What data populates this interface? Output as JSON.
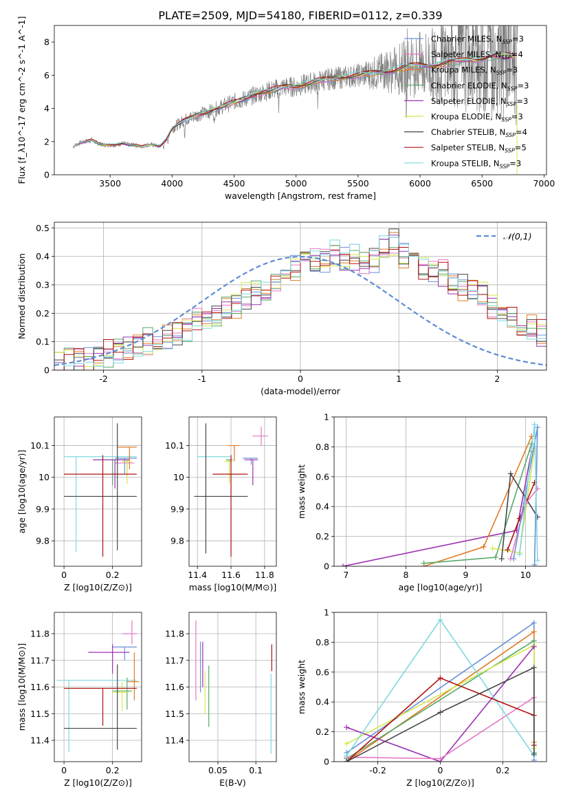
{
  "figure_title": "PLATE=2509, MJD=54180, FIBERID=0112, z=0.339",
  "colors": {
    "Chabrier MILES": "#6b8fd6",
    "Salpeter MILES": "#e377c2",
    "Kroupa MILES": "#e07b22",
    "Chabrier ELODIE": "#55a868",
    "Salpeter ELODIE": "#9b30b0",
    "Kroupa ELODIE": "#d4e84a",
    "Chabrier STELIB": "#444444",
    "Salpeter STELIB": "#b01010",
    "Kroupa STELIB": "#7ed8de",
    "spectrum": "#808080",
    "normal_curve": "#5b8bd6"
  },
  "chart_data": [
    {
      "id": "spectrum",
      "type": "line",
      "xlabel": "wavelength [Angstrom, rest frame]",
      "ylabel": "Flux [f_λ10^-17 erg cm^-2 s^-1 A^-1]",
      "xlim": [
        3050,
        7020
      ],
      "ylim": [
        0,
        9
      ],
      "xticks": [
        3500,
        4000,
        4500,
        5000,
        5500,
        6000,
        6500,
        7000
      ],
      "yticks": [
        0,
        2,
        4,
        6,
        8
      ],
      "grid": false,
      "legend_position": "top-right",
      "legend": [
        {
          "name": "Chabrier MILES",
          "nssp": 3
        },
        {
          "name": "Salpeter MILES",
          "nssp": 4
        },
        {
          "name": "Kroupa MILES",
          "nssp": 3
        },
        {
          "name": "Chabrier ELODIE",
          "nssp": 3
        },
        {
          "name": "Salpeter ELODIE",
          "nssp": 3
        },
        {
          "name": "Kroupa ELODIE",
          "nssp": 3
        },
        {
          "name": "Chabrier STELIB",
          "nssp": 4
        },
        {
          "name": "Salpeter STELIB",
          "nssp": 5
        },
        {
          "name": "Kroupa STELIB",
          "nssp": 3
        }
      ],
      "continuum": {
        "x": [
          3200,
          3250,
          3300,
          3350,
          3400,
          3450,
          3500,
          3550,
          3600,
          3650,
          3700,
          3750,
          3800,
          3850,
          3900,
          3950,
          4000,
          4100,
          4200,
          4300,
          4400,
          4500,
          4600,
          4700,
          4800,
          4900,
          5000,
          5100,
          5200,
          5300,
          5400,
          5500,
          5600,
          5700,
          5800,
          5900,
          6000,
          6100,
          6200,
          6300,
          6400,
          6500,
          6600,
          6700,
          6800
        ],
        "y": [
          1.7,
          1.9,
          2.0,
          2.1,
          1.9,
          1.8,
          1.8,
          1.8,
          1.9,
          1.8,
          1.8,
          1.7,
          1.8,
          1.8,
          1.7,
          2.1,
          2.8,
          3.3,
          3.6,
          3.8,
          4.1,
          4.4,
          4.6,
          4.9,
          5.1,
          5.3,
          5.3,
          5.5,
          5.7,
          5.8,
          5.9,
          6.0,
          6.1,
          6.2,
          6.3,
          6.5,
          6.6,
          6.6,
          6.7,
          6.8,
          7.0,
          7.0,
          7.1,
          7.2,
          7.2
        ]
      },
      "wavelength_range": [
        3200,
        6790
      ]
    },
    {
      "id": "residuals",
      "type": "bar",
      "xlabel": "(data-model)/error",
      "ylabel": "Normed distribution",
      "xlim": [
        -2.5,
        2.5
      ],
      "ylim": [
        0,
        0.52
      ],
      "xticks": [
        -2,
        -1,
        0,
        1,
        2
      ],
      "yticks": [
        0.0,
        0.1,
        0.2,
        0.3,
        0.4,
        0.5
      ],
      "grid": true,
      "legend": [
        {
          "name": "𝒩(0,1)"
        }
      ],
      "legend_position": "top-right",
      "bin_width": 0.1,
      "x_start": -2.5,
      "bins_reference": [
        0.02,
        0.03,
        0.04,
        0.04,
        0.05,
        0.06,
        0.07,
        0.08,
        0.09,
        0.1,
        0.12,
        0.12,
        0.13,
        0.15,
        0.17,
        0.18,
        0.19,
        0.21,
        0.23,
        0.26,
        0.28,
        0.29,
        0.31,
        0.33,
        0.36,
        0.37,
        0.38,
        0.39,
        0.41,
        0.39,
        0.4,
        0.38,
        0.39,
        0.43,
        0.45,
        0.4,
        0.39,
        0.36,
        0.35,
        0.34,
        0.31,
        0.29,
        0.27,
        0.26,
        0.23,
        0.2,
        0.18,
        0.16,
        0.15,
        0.13
      ]
    },
    {
      "id": "age_vs_Z",
      "type": "scatter",
      "xlabel": "Z [log10(Z/Z⊙)]",
      "ylabel": "age [log10(age/yr)]",
      "xlim": [
        -0.04,
        0.32
      ],
      "ylim": [
        9.72,
        10.19
      ],
      "xticks": [
        0.0,
        0.2
      ],
      "yticks": [
        9.8,
        9.9,
        10.0,
        10.1
      ],
      "grid": true,
      "points": [
        {
          "model": "Kroupa STELIB",
          "x": 0.05,
          "xerr": [
            0.05,
            0.25
          ],
          "y": 10.065,
          "yerr": [
            0.3,
            0.0
          ]
        },
        {
          "model": "Chabrier MILES",
          "x": 0.25,
          "xerr": [
            0.04,
            0.05
          ],
          "y": 10.06,
          "yerr": [
            0.05,
            0.0
          ]
        },
        {
          "model": "Salpeter MILES",
          "x": 0.26,
          "xerr": [
            0.05,
            0.03
          ],
          "y": 10.045,
          "yerr": [
            0.04,
            0.01
          ]
        },
        {
          "model": "Kroupa MILES",
          "x": 0.27,
          "xerr": [
            0.05,
            0.03
          ],
          "y": 10.095,
          "yerr": [
            0.07,
            0.0
          ]
        },
        {
          "model": "Chabrier ELODIE",
          "x": 0.2,
          "xerr": [
            0.08,
            0.07
          ],
          "y": 10.055,
          "yerr": [
            0.08,
            0.0
          ]
        },
        {
          "model": "Salpeter ELODIE",
          "x": 0.21,
          "xerr": [
            0.09,
            0.06
          ],
          "y": 10.055,
          "yerr": [
            0.09,
            0.0
          ]
        },
        {
          "model": "Kroupa ELODIE",
          "x": 0.26,
          "xerr": [
            0.02,
            0.02
          ],
          "y": 10.05,
          "yerr": [
            0.07,
            0.0
          ]
        },
        {
          "model": "Salpeter STELIB",
          "x": 0.16,
          "xerr": [
            0.16,
            0.14
          ],
          "y": 10.01,
          "yerr": [
            0.26,
            0.06
          ]
        },
        {
          "model": "Chabrier STELIB",
          "x": 0.22,
          "xerr": [
            0.22,
            0.08
          ],
          "y": 9.94,
          "yerr": [
            0.17,
            0.23
          ]
        }
      ]
    },
    {
      "id": "age_vs_mass",
      "type": "scatter",
      "xlabel": "mass [log10(M/M⊙)]",
      "ylabel": "",
      "xlim": [
        11.35,
        11.87
      ],
      "ylim": [
        9.72,
        10.19
      ],
      "xticks": [
        11.4,
        11.6,
        11.8
      ],
      "yticks": [
        9.8,
        9.9,
        10.0,
        10.1
      ],
      "grid": true,
      "points": [
        {
          "model": "Kroupa STELIB",
          "x": 11.6,
          "xerr": [
            0.2,
            0.0
          ],
          "y": 10.065,
          "yerr": [
            0.3,
            0.0
          ]
        },
        {
          "model": "Chabrier MILES",
          "x": 11.72,
          "xerr": [
            0.05,
            0.04
          ],
          "y": 10.06,
          "yerr": [
            0.02,
            0.0
          ]
        },
        {
          "model": "Salpeter MILES",
          "x": 11.78,
          "xerr": [
            0.05,
            0.04
          ],
          "y": 10.13,
          "yerr": [
            0.03,
            0.03
          ]
        },
        {
          "model": "Kroupa MILES",
          "x": 11.62,
          "xerr": [
            0.04,
            0.03
          ],
          "y": 10.1,
          "yerr": [
            0.05,
            0.0
          ]
        },
        {
          "model": "Chabrier ELODIE",
          "x": 11.59,
          "xerr": [
            0.02,
            0.02
          ],
          "y": 10.055,
          "yerr": [
            0.07,
            0.0
          ]
        },
        {
          "model": "Salpeter ELODIE",
          "x": 11.73,
          "xerr": [
            0.05,
            0.03
          ],
          "y": 10.055,
          "yerr": [
            0.08,
            0.0
          ]
        },
        {
          "model": "Kroupa ELODIE",
          "x": 11.59,
          "xerr": [
            0.03,
            0.02
          ],
          "y": 10.05,
          "yerr": [
            0.07,
            0.0
          ]
        },
        {
          "model": "Salpeter STELIB",
          "x": 11.6,
          "xerr": [
            0.11,
            0.1
          ],
          "y": 10.01,
          "yerr": [
            0.26,
            0.06
          ]
        },
        {
          "model": "Chabrier STELIB",
          "x": 11.45,
          "xerr": [
            0.07,
            0.25
          ],
          "y": 9.94,
          "yerr": [
            0.18,
            0.23
          ]
        }
      ]
    },
    {
      "id": "massweight_vs_age",
      "type": "line",
      "xlabel": "age [log10(age/yr)]",
      "ylabel": "mass weight",
      "xlim": [
        6.8,
        10.35
      ],
      "ylim": [
        0,
        1.0
      ],
      "xticks": [
        7,
        8,
        9,
        10
      ],
      "yticks": [
        0.0,
        0.2,
        0.4,
        0.6,
        0.8,
        1.0
      ],
      "grid": true,
      "series": [
        {
          "model": "Salpeter ELODIE",
          "x": [
            6.95,
            9.85,
            10.1
          ],
          "y": [
            0.0,
            0.24,
            0.77
          ]
        },
        {
          "model": "Kroupa MILES",
          "x": [
            8.3,
            9.3,
            10.1
          ],
          "y": [
            0.0,
            0.13,
            0.87
          ]
        },
        {
          "model": "Chabrier ELODIE",
          "x": [
            8.3,
            9.5,
            10.1
          ],
          "y": [
            0.02,
            0.06,
            0.82
          ]
        },
        {
          "model": "Kroupa ELODIE",
          "x": [
            9.45,
            9.9,
            10.15
          ],
          "y": [
            0.12,
            0.09,
            0.79
          ]
        },
        {
          "model": "Chabrier STELIB",
          "x": [
            9.6,
            9.75,
            10.2
          ],
          "y": [
            0.05,
            0.62,
            0.33
          ]
        },
        {
          "model": "Salpeter STELIB",
          "x": [
            9.7,
            9.9,
            10.15
          ],
          "y": [
            0.11,
            0.32,
            0.56
          ]
        },
        {
          "model": "Salpeter MILES",
          "x": [
            9.75,
            10.0,
            10.2
          ],
          "y": [
            0.05,
            0.42,
            0.52
          ]
        },
        {
          "model": "Chabrier MILES",
          "x": [
            9.8,
            10.2,
            10.15
          ],
          "y": [
            0.05,
            0.93,
            0.01
          ]
        },
        {
          "model": "Kroupa STELIB",
          "x": [
            9.9,
            10.15,
            10.2
          ],
          "y": [
            0.08,
            0.95,
            0.04
          ]
        }
      ]
    },
    {
      "id": "mass_vs_Z",
      "type": "scatter",
      "xlabel": "Z [log10(Z/Z⊙)]",
      "ylabel": "mass [log10(M/M⊙)]",
      "xlim": [
        -0.04,
        0.32
      ],
      "ylim": [
        11.32,
        11.88
      ],
      "xticks": [
        0.0,
        0.2
      ],
      "yticks": [
        11.4,
        11.5,
        11.6,
        11.7,
        11.8
      ],
      "grid": true,
      "points": [
        {
          "model": "Kroupa STELIB",
          "x": 0.02,
          "xerr": [
            0.05,
            0.28
          ],
          "y": 11.625,
          "yerr": [
            0.27,
            0.0
          ]
        },
        {
          "model": "Salpeter MILES",
          "x": 0.28,
          "xerr": [
            0.04,
            0.02
          ],
          "y": 11.8,
          "yerr": [
            0.04,
            0.05
          ]
        },
        {
          "model": "Chabrier MILES",
          "x": 0.25,
          "xerr": [
            0.05,
            0.05
          ],
          "y": 11.75,
          "yerr": [
            0.05,
            0.0
          ]
        },
        {
          "model": "Salpeter ELODIE",
          "x": 0.2,
          "xerr": [
            0.1,
            0.07
          ],
          "y": 11.73,
          "yerr": [
            0.08,
            0.03
          ]
        },
        {
          "model": "Kroupa MILES",
          "x": 0.29,
          "xerr": [
            0.03,
            0.02
          ],
          "y": 11.62,
          "yerr": [
            0.07,
            0.11
          ]
        },
        {
          "model": "Chabrier ELODIE",
          "x": 0.26,
          "xerr": [
            0.06,
            0.02
          ],
          "y": 11.585,
          "yerr": [
            0.07,
            0.05
          ]
        },
        {
          "model": "Kroupa ELODIE",
          "x": 0.24,
          "xerr": [
            0.04,
            0.03
          ],
          "y": 11.58,
          "yerr": [
            0.07,
            0.04
          ]
        },
        {
          "model": "Salpeter STELIB",
          "x": 0.16,
          "xerr": [
            0.16,
            0.14
          ],
          "y": 11.595,
          "yerr": [
            0.14,
            0.0
          ]
        },
        {
          "model": "Chabrier STELIB",
          "x": 0.22,
          "xerr": [
            0.22,
            0.08
          ],
          "y": 11.445,
          "yerr": [
            0.08,
            0.24
          ]
        }
      ]
    },
    {
      "id": "mass_vs_ebv",
      "type": "scatter",
      "xlabel": "E(B-V)",
      "ylabel": "",
      "xlim": [
        0.012,
        0.127
      ],
      "ylim": [
        11.32,
        11.88
      ],
      "xticks": [
        0.05,
        0.1
      ],
      "yticks": [
        11.4,
        11.5,
        11.6,
        11.7,
        11.8
      ],
      "grid": true,
      "points": [
        {
          "model": "Salpeter MILES",
          "y": 11.75,
          "x": 0.021,
          "yerr": [
            0.2,
            0.1
          ]
        },
        {
          "model": "Chabrier MILES",
          "y": 11.7,
          "x": 0.027,
          "yerr": [
            0.12,
            0.07
          ]
        },
        {
          "model": "Salpeter ELODIE",
          "y": 11.7,
          "x": 0.03,
          "yerr": [
            0.1,
            0.07
          ]
        },
        {
          "model": "Kroupa ELODIE",
          "y": 11.58,
          "x": 0.033,
          "yerr": [
            0.08,
            0.08
          ]
        },
        {
          "model": "Chabrier ELODIE",
          "y": 11.57,
          "x": 0.038,
          "yerr": [
            0.12,
            0.11
          ]
        },
        {
          "model": "Kroupa STELIB",
          "y": 11.5,
          "x": 0.12,
          "yerr": [
            0.15,
            0.15
          ]
        },
        {
          "model": "Salpeter STELIB",
          "y": 11.71,
          "x": 0.121,
          "yerr": [
            0.05,
            0.05
          ]
        }
      ]
    },
    {
      "id": "massweight_vs_Z",
      "type": "line",
      "xlabel": "Z [log10(Z/Z⊙)]",
      "ylabel": "mass weight",
      "xlim": [
        -0.34,
        0.34
      ],
      "ylim": [
        0,
        1.0
      ],
      "xticks": [
        -0.2,
        0.0,
        0.2
      ],
      "yticks": [
        0.0,
        0.2,
        0.4,
        0.6,
        0.8,
        1.0
      ],
      "grid": true,
      "series": [
        {
          "model": "Chabrier MILES",
          "x": [
            -0.3,
            0.3,
            0.3
          ],
          "y": [
            0.06,
            0.93,
            0.01
          ]
        },
        {
          "model": "Kroupa MILES",
          "x": [
            -0.3,
            0.3,
            0.3
          ],
          "y": [
            0.0,
            0.87,
            0.13
          ]
        },
        {
          "model": "Chabrier ELODIE",
          "x": [
            -0.3,
            0.3,
            0.3
          ],
          "y": [
            0.02,
            0.81,
            0.06
          ]
        },
        {
          "model": "Kroupa ELODIE",
          "x": [
            -0.3,
            0.3,
            0.3
          ],
          "y": [
            0.12,
            0.78,
            0.09
          ]
        },
        {
          "model": "Salpeter ELODIE",
          "x": [
            -0.3,
            0.0,
            0.3
          ],
          "y": [
            0.23,
            0.0,
            0.77
          ]
        },
        {
          "model": "Salpeter MILES",
          "x": [
            -0.3,
            0.0,
            0.3
          ],
          "y": [
            0.03,
            0.02,
            0.43
          ]
        },
        {
          "model": "Kroupa STELIB",
          "x": [
            -0.3,
            0.0,
            0.3
          ],
          "y": [
            0.04,
            0.95,
            0.04
          ]
        },
        {
          "model": "Salpeter STELIB",
          "x": [
            -0.3,
            0.0,
            0.3,
            0.3
          ],
          "y": [
            0.0,
            0.56,
            0.31,
            0.11
          ]
        },
        {
          "model": "Chabrier STELIB",
          "x": [
            -0.3,
            0.0,
            0.3,
            0.3
          ],
          "y": [
            0.0,
            0.33,
            0.63,
            0.05
          ]
        }
      ]
    }
  ]
}
